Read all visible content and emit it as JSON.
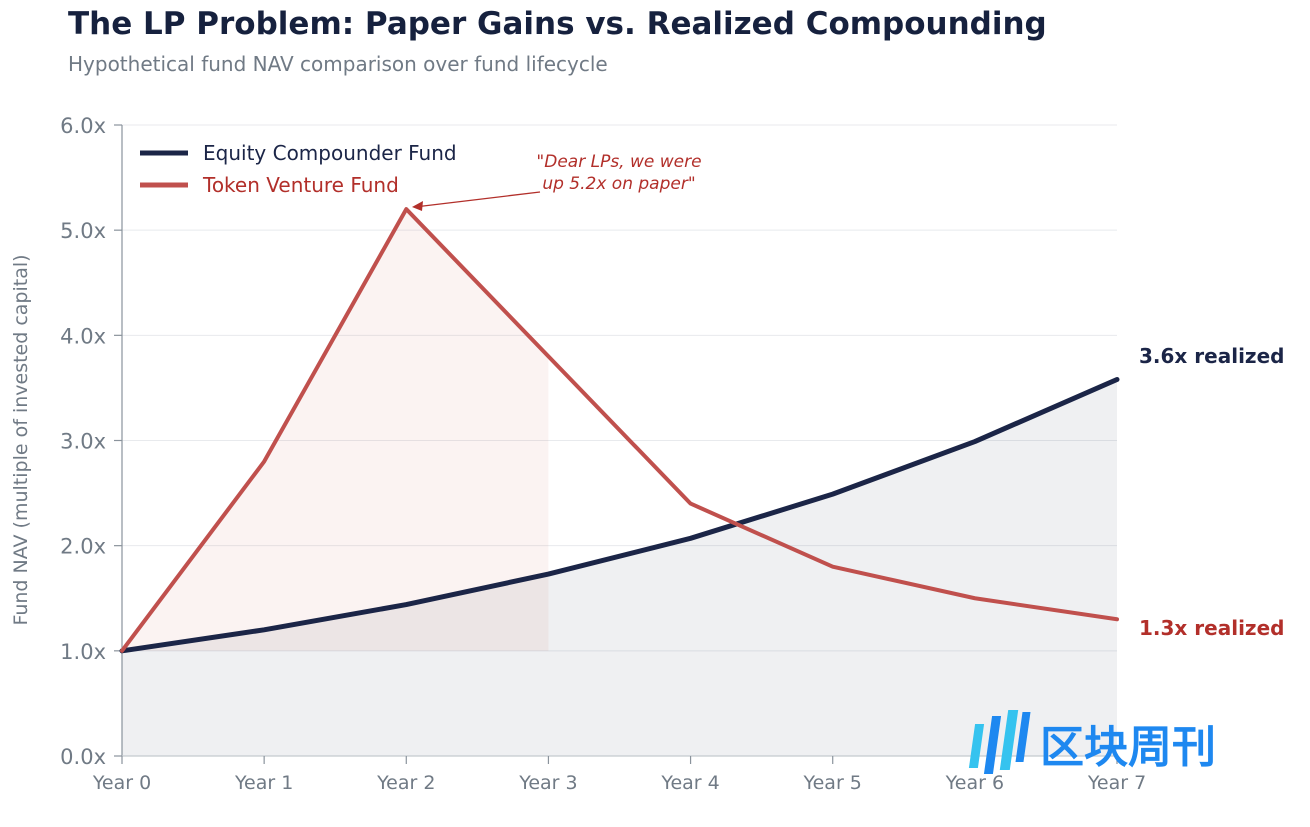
{
  "title": "The LP Problem: Paper Gains vs. Realized Compounding",
  "subtitle": "Hypothetical fund NAV comparison over fund lifecycle",
  "chart_data": {
    "type": "line",
    "categories": [
      "Year 0",
      "Year 1",
      "Year 2",
      "Year 3",
      "Year 4",
      "Year 5",
      "Year 6",
      "Year 7"
    ],
    "x": [
      0,
      1,
      2,
      3,
      4,
      5,
      6,
      7
    ],
    "series": [
      {
        "name": "Equity Compounder Fund",
        "color": "#1b2547",
        "values": [
          1.0,
          1.2,
          1.44,
          1.73,
          2.07,
          2.49,
          2.99,
          3.58
        ]
      },
      {
        "name": "Token Venture Fund",
        "color": "#c0504d",
        "values": [
          1.0,
          2.8,
          5.2,
          3.8,
          2.4,
          1.8,
          1.5,
          1.3
        ]
      }
    ],
    "ylabel": "Fund NAV (multiple of invested capital)",
    "ylim": [
      0,
      6
    ],
    "yticks": [
      0,
      1,
      2,
      3,
      4,
      5,
      6
    ],
    "ytick_labels": [
      "0.0x",
      "1.0x",
      "2.0x",
      "3.0x",
      "4.0x",
      "5.0x",
      "6.0x"
    ],
    "grid": true,
    "legend_position": "top-left",
    "annotation": {
      "lines": [
        "\"Dear LPs, we were",
        "up 5.2x on paper\""
      ],
      "target_x": 2,
      "target_y": 5.2
    },
    "end_labels": [
      {
        "text": "3.6x realized",
        "color": "#1b2547"
      },
      {
        "text": "1.3x realized",
        "color": "#b22f2a"
      }
    ]
  },
  "watermark": {
    "text": "区块周刊",
    "icon": "logo-bars-icon"
  }
}
